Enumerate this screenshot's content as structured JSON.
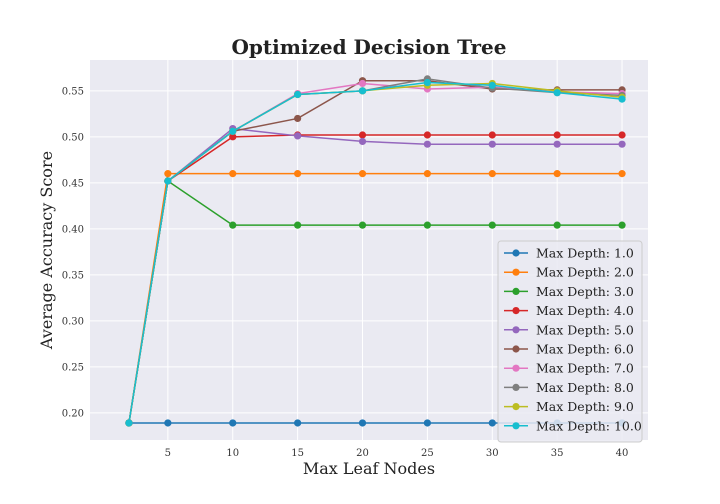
{
  "chart_data": {
    "type": "line",
    "title": "Optimized Decision Tree",
    "xlabel": "Max Leaf Nodes",
    "ylabel": "Average Accuracy Score",
    "x": [
      2,
      5,
      10,
      15,
      20,
      25,
      30,
      35,
      40
    ],
    "xticks": [
      5,
      10,
      15,
      20,
      25,
      30,
      35,
      40
    ],
    "yticks": [
      0.2,
      0.25,
      0.3,
      0.35,
      0.4,
      0.45,
      0.5,
      0.55
    ],
    "xlim": [
      -1,
      42
    ],
    "ylim": [
      0.1705,
      0.5835
    ],
    "grid": true,
    "legend_position": "lower-right",
    "series": [
      {
        "name": "Max Depth: 1.0",
        "color": "#1f77b4",
        "values": [
          0.189,
          0.189,
          0.189,
          0.189,
          0.189,
          0.189,
          0.189,
          0.189,
          0.189
        ]
      },
      {
        "name": "Max Depth: 2.0",
        "color": "#ff7f0e",
        "values": [
          0.189,
          0.46,
          0.46,
          0.46,
          0.46,
          0.46,
          0.46,
          0.46,
          0.46
        ]
      },
      {
        "name": "Max Depth: 3.0",
        "color": "#2ca02c",
        "values": [
          0.189,
          0.452,
          0.404,
          0.404,
          0.404,
          0.404,
          0.404,
          0.404,
          0.404
        ]
      },
      {
        "name": "Max Depth: 4.0",
        "color": "#d62728",
        "values": [
          0.189,
          0.452,
          0.5,
          0.502,
          0.502,
          0.502,
          0.502,
          0.502,
          0.502
        ]
      },
      {
        "name": "Max Depth: 5.0",
        "color": "#9467bd",
        "values": [
          0.189,
          0.452,
          0.509,
          0.501,
          0.495,
          0.492,
          0.492,
          0.492,
          0.492
        ]
      },
      {
        "name": "Max Depth: 6.0",
        "color": "#8c564b",
        "values": [
          0.189,
          0.452,
          0.506,
          0.52,
          0.561,
          0.561,
          0.552,
          0.551,
          0.551
        ]
      },
      {
        "name": "Max Depth: 7.0",
        "color": "#e377c2",
        "values": [
          0.189,
          0.452,
          0.506,
          0.547,
          0.558,
          0.552,
          0.554,
          0.549,
          0.547
        ]
      },
      {
        "name": "Max Depth: 8.0",
        "color": "#7f7f7f",
        "values": [
          0.189,
          0.452,
          0.506,
          0.546,
          0.55,
          0.563,
          0.553,
          0.548,
          0.545
        ]
      },
      {
        "name": "Max Depth: 9.0",
        "color": "#bcbd22",
        "values": [
          0.189,
          0.452,
          0.506,
          0.546,
          0.55,
          0.556,
          0.558,
          0.55,
          0.543
        ]
      },
      {
        "name": "Max Depth: 10.0",
        "color": "#17becf",
        "values": [
          0.189,
          0.452,
          0.506,
          0.546,
          0.55,
          0.559,
          0.556,
          0.548,
          0.541
        ]
      }
    ]
  }
}
